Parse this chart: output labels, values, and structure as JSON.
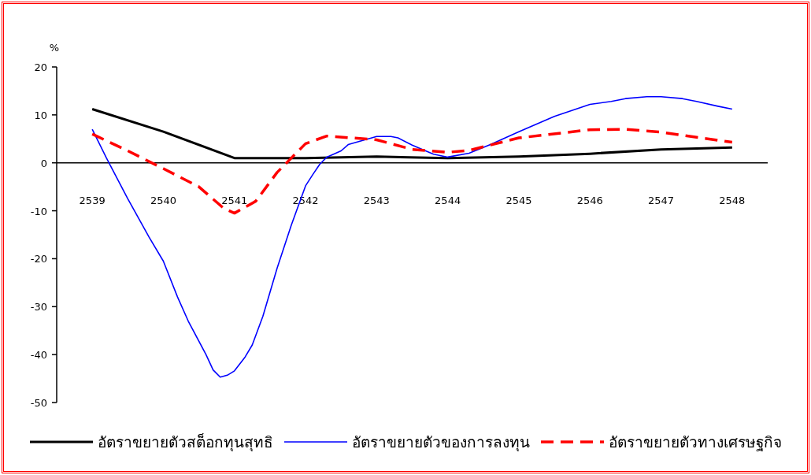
{
  "chart_data": {
    "type": "line",
    "ylabel": "%",
    "xlim": [
      2538.5,
      2548.5
    ],
    "ylim": [
      -50,
      20
    ],
    "xticks": [
      2539,
      2540,
      2541,
      2542,
      2543,
      2544,
      2545,
      2546,
      2547,
      2548
    ],
    "yticks": [
      -50,
      -40,
      -30,
      -20,
      -10,
      0,
      10,
      20
    ],
    "legend": "bottom",
    "series": [
      {
        "name": "อัตราขยายตัวสต็อกทุนสุทธิ",
        "color": "#000000",
        "line_style": "solid",
        "x": [
          2539,
          2540,
          2541,
          2542,
          2543,
          2544,
          2545,
          2546,
          2547,
          2548
        ],
        "values": [
          11.2,
          6.5,
          1,
          1,
          1.3,
          1,
          1.3,
          1.9,
          2.8,
          3.2
        ]
      },
      {
        "name": "อัตราขยายตัวของการลงทุน",
        "color": "#0000ff",
        "line_style": "solid",
        "x": [
          2539,
          2539.2,
          2539.5,
          2539.8,
          2540,
          2540.2,
          2540.35,
          2540.6,
          2540.7,
          2540.8,
          2540.9,
          2541,
          2541.15,
          2541.25,
          2541.4,
          2541.6,
          2541.8,
          2542,
          2542.1,
          2542.2,
          2542.3,
          2542.5,
          2542.6,
          2543,
          2543.2,
          2543.3,
          2543.5,
          2543.8,
          2544,
          2544.3,
          2544.6,
          2545,
          2545.5,
          2546,
          2546.3,
          2546.5,
          2546.8,
          2547,
          2547.3,
          2547.5,
          2547.8,
          2548
        ],
        "values": [
          7,
          1,
          -7.5,
          -15.5,
          -20.5,
          -28,
          -33,
          -40,
          -43.2,
          -44.7,
          -44.3,
          -43.4,
          -40.5,
          -38,
          -32,
          -22,
          -13,
          -4.8,
          -2.5,
          -0.3,
          1.2,
          2.5,
          3.8,
          5.5,
          5.5,
          5.2,
          3.7,
          1.8,
          1.2,
          2,
          3.8,
          6.5,
          9.7,
          12.2,
          12.8,
          13.4,
          13.8,
          13.8,
          13.4,
          12.8,
          11.8,
          11.2
        ]
      },
      {
        "name": "อัตราขยายตัวทางเศรษฐกิจ",
        "color": "#ff0000",
        "line_style": "dashed",
        "x": [
          2539,
          2539.5,
          2540,
          2540.5,
          2540.85,
          2541,
          2541.3,
          2541.6,
          2541.8,
          2542,
          2542.3,
          2543,
          2543.5,
          2544,
          2544.3,
          2545,
          2546,
          2546.5,
          2547,
          2548
        ],
        "values": [
          6,
          2.5,
          -1.2,
          -5,
          -9.5,
          -10.5,
          -8,
          -2,
          1,
          4,
          5.6,
          4.8,
          2.8,
          2.2,
          2.6,
          5.2,
          6.9,
          7,
          6.4,
          4.3
        ]
      }
    ]
  }
}
